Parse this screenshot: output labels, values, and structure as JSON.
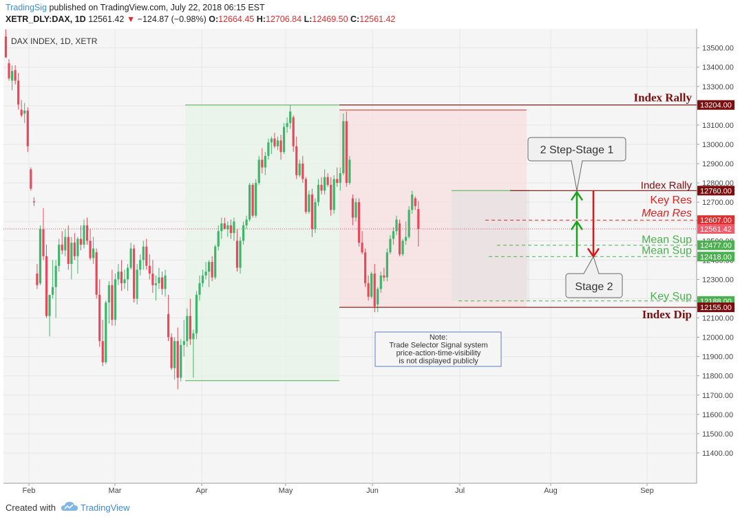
{
  "header": {
    "publisher": "TradingSig",
    "published_text": "published on TradingView.com, July 22, 2018 06:15 EST",
    "symbol": "XETR_DLY:DAX, 1D",
    "last": "12561.42",
    "change_arrow": "▼",
    "change": "−124.87 (−0.98%)",
    "open_label": "O:",
    "open": "12664.45",
    "high_label": "H:",
    "high": "12706.84",
    "low_label": "L:",
    "low": "12469.50",
    "close_label": "C:",
    "close": "12561.42"
  },
  "footer": {
    "created_with": "Created with",
    "brand": "TradingView"
  },
  "colors": {
    "up": "#3fb56a",
    "down": "#e8485a",
    "dark_red": "#7b0f0f",
    "green": "#4cb050",
    "red": "#dd2222"
  },
  "chart_data": {
    "type": "candlestick",
    "title": "DAX INDEX, 1D, XETR",
    "y_range": [
      11300,
      13570
    ],
    "y_ticks": [
      11400,
      11500,
      11600,
      11700,
      11800,
      11900,
      12000,
      12100,
      12200,
      12300,
      12400,
      12500,
      12600,
      12700,
      12800,
      12900,
      13000,
      13100,
      13200,
      13300,
      13400,
      13500
    ],
    "x_ticks": [
      "Feb",
      "Mar",
      "Apr",
      "May",
      "Jun",
      "Jul",
      "Aug",
      "Sep"
    ],
    "price_tags": [
      {
        "label": "13204.00",
        "value": 13204,
        "color": "#7b0f0f"
      },
      {
        "label": "12760.00",
        "value": 12760,
        "color": "#7b0f0f"
      },
      {
        "label": "12607.00",
        "value": 12607,
        "color": "#e02d2d"
      },
      {
        "label": "12561.42",
        "value": 12561.42,
        "color": "#ef5b6a"
      },
      {
        "label": "12477.00",
        "value": 12477,
        "color": "#4cb050"
      },
      {
        "label": "12418.00",
        "value": 12418,
        "color": "#4cb050"
      },
      {
        "label": "12188.00",
        "value": 12188,
        "color": "#4cb050"
      },
      {
        "label": "12155.00",
        "value": 12155,
        "color": "#7b0f0f"
      }
    ],
    "levels": [
      {
        "name": "Index Rally",
        "value": 13204
      },
      {
        "name": "Index Rally",
        "value": 12760
      },
      {
        "name": "Key Res",
        "value": 12700
      },
      {
        "name": "Mean Res",
        "value": 12607
      },
      {
        "name": "Mean Sup",
        "value": 12477
      },
      {
        "name": "Mean Sup",
        "value": 12418
      },
      {
        "name": "Key Sup",
        "value": 12188
      },
      {
        "name": "Index Dip",
        "value": 12155
      }
    ],
    "callouts": [
      "2 Step-Stage 1",
      "Stage 2"
    ],
    "note": [
      "Note:",
      "Trade Selector Signal system",
      "price-action-time-visibility",
      "is not displayed publicly"
    ],
    "candles": [
      {
        "o": 13559,
        "h": 13596,
        "l": 13450,
        "c": 13450
      },
      {
        "o": 13420,
        "h": 13442,
        "l": 13330,
        "c": 13342
      },
      {
        "o": 13330,
        "h": 13409,
        "l": 13280,
        "c": 13380
      },
      {
        "o": 13385,
        "h": 13410,
        "l": 13310,
        "c": 13330
      },
      {
        "o": 13330,
        "h": 13370,
        "l": 13180,
        "c": 13206
      },
      {
        "o": 13180,
        "h": 13230,
        "l": 13140,
        "c": 13150
      },
      {
        "o": 13160,
        "h": 13215,
        "l": 13110,
        "c": 13175
      },
      {
        "o": 13175,
        "h": 13192,
        "l": 12960,
        "c": 12990
      },
      {
        "o": 12870,
        "h": 12880,
        "l": 12760,
        "c": 12770
      },
      {
        "o": 12704,
        "h": 12726,
        "l": 12680,
        "c": 12700
      },
      {
        "o": 12330,
        "h": 12380,
        "l": 12250,
        "c": 12270
      },
      {
        "o": 12280,
        "h": 12580,
        "l": 12270,
        "c": 12560
      },
      {
        "o": 12560,
        "h": 12670,
        "l": 12400,
        "c": 12420
      },
      {
        "o": 12420,
        "h": 12480,
        "l": 12100,
        "c": 12110
      },
      {
        "o": 12110,
        "h": 12200,
        "l": 12005,
        "c": 12220
      },
      {
        "o": 12220,
        "h": 12400,
        "l": 12200,
        "c": 12260
      },
      {
        "o": 12260,
        "h": 12400,
        "l": 12100,
        "c": 12370
      },
      {
        "o": 12370,
        "h": 12510,
        "l": 12340,
        "c": 12480
      },
      {
        "o": 12480,
        "h": 12550,
        "l": 12430,
        "c": 12450
      },
      {
        "o": 12450,
        "h": 12560,
        "l": 12420,
        "c": 12520
      },
      {
        "o": 12520,
        "h": 12580,
        "l": 12350,
        "c": 12380
      },
      {
        "o": 12380,
        "h": 12520,
        "l": 12300,
        "c": 12490
      },
      {
        "o": 12490,
        "h": 12540,
        "l": 12400,
        "c": 12420
      },
      {
        "o": 12420,
        "h": 12520,
        "l": 12330,
        "c": 12510
      },
      {
        "o": 12510,
        "h": 12580,
        "l": 12450,
        "c": 12480
      },
      {
        "o": 12480,
        "h": 12610,
        "l": 12460,
        "c": 12580
      },
      {
        "o": 12580,
        "h": 12620,
        "l": 12480,
        "c": 12500
      },
      {
        "o": 12500,
        "h": 12560,
        "l": 12400,
        "c": 12410
      },
      {
        "o": 12410,
        "h": 12520,
        "l": 12380,
        "c": 12460
      },
      {
        "o": 12440,
        "h": 12460,
        "l": 12200,
        "c": 12220
      },
      {
        "o": 12220,
        "h": 12300,
        "l": 11950,
        "c": 11980
      },
      {
        "o": 11980,
        "h": 12090,
        "l": 11850,
        "c": 11870
      },
      {
        "o": 11870,
        "h": 12190,
        "l": 11860,
        "c": 12180
      },
      {
        "o": 12180,
        "h": 12290,
        "l": 12070,
        "c": 12270
      },
      {
        "o": 12270,
        "h": 12350,
        "l": 12060,
        "c": 12090
      },
      {
        "o": 12090,
        "h": 12330,
        "l": 12060,
        "c": 12300
      },
      {
        "o": 12300,
        "h": 12380,
        "l": 12270,
        "c": 12340
      },
      {
        "o": 12340,
        "h": 12400,
        "l": 12240,
        "c": 12280
      },
      {
        "o": 12280,
        "h": 12350,
        "l": 12250,
        "c": 12300
      },
      {
        "o": 12300,
        "h": 12380,
        "l": 12240,
        "c": 12360
      },
      {
        "o": 12360,
        "h": 12490,
        "l": 12350,
        "c": 12460
      },
      {
        "o": 12460,
        "h": 12480,
        "l": 12180,
        "c": 12200
      },
      {
        "o": 12200,
        "h": 12380,
        "l": 12170,
        "c": 12350
      },
      {
        "o": 12350,
        "h": 12430,
        "l": 12320,
        "c": 12400
      },
      {
        "o": 12400,
        "h": 12500,
        "l": 12350,
        "c": 12470
      },
      {
        "o": 12470,
        "h": 12510,
        "l": 12350,
        "c": 12370
      },
      {
        "o": 12370,
        "h": 12430,
        "l": 12300,
        "c": 12330
      },
      {
        "o": 12330,
        "h": 12400,
        "l": 12230,
        "c": 12270
      },
      {
        "o": 12270,
        "h": 12320,
        "l": 12190,
        "c": 12280
      },
      {
        "o": 12280,
        "h": 12360,
        "l": 12250,
        "c": 12310
      },
      {
        "o": 12310,
        "h": 12340,
        "l": 12220,
        "c": 12250
      },
      {
        "o": 12250,
        "h": 12350,
        "l": 12210,
        "c": 12320
      },
      {
        "o": 12120,
        "h": 12220,
        "l": 11980,
        "c": 12000
      },
      {
        "o": 12000,
        "h": 12020,
        "l": 11830,
        "c": 11840
      },
      {
        "o": 11840,
        "h": 12000,
        "l": 11780,
        "c": 11980
      },
      {
        "o": 11980,
        "h": 12050,
        "l": 11730,
        "c": 11790
      },
      {
        "o": 11790,
        "h": 11990,
        "l": 11770,
        "c": 11960
      },
      {
        "o": 11960,
        "h": 12090,
        "l": 11900,
        "c": 11980
      },
      {
        "o": 11980,
        "h": 12150,
        "l": 11950,
        "c": 12110
      },
      {
        "o": 12110,
        "h": 12200,
        "l": 11960,
        "c": 11990
      },
      {
        "o": 11990,
        "h": 12040,
        "l": 11790,
        "c": 12020
      },
      {
        "o": 12020,
        "h": 12240,
        "l": 11990,
        "c": 12220
      },
      {
        "o": 12220,
        "h": 12320,
        "l": 12190,
        "c": 12280
      },
      {
        "o": 12280,
        "h": 12350,
        "l": 12260,
        "c": 12320
      },
      {
        "o": 12320,
        "h": 12390,
        "l": 12300,
        "c": 12340
      },
      {
        "o": 12340,
        "h": 12400,
        "l": 12260,
        "c": 12390
      },
      {
        "o": 12390,
        "h": 12420,
        "l": 12290,
        "c": 12310
      },
      {
        "o": 12310,
        "h": 12480,
        "l": 12300,
        "c": 12470
      },
      {
        "o": 12470,
        "h": 12580,
        "l": 12450,
        "c": 12550
      },
      {
        "o": 12550,
        "h": 12620,
        "l": 12510,
        "c": 12590
      },
      {
        "o": 12590,
        "h": 12620,
        "l": 12560,
        "c": 12560
      },
      {
        "o": 12560,
        "h": 12600,
        "l": 12520,
        "c": 12580
      },
      {
        "o": 12580,
        "h": 12610,
        "l": 12510,
        "c": 12540
      },
      {
        "o": 12540,
        "h": 12620,
        "l": 12500,
        "c": 12600
      },
      {
        "o": 12500,
        "h": 12560,
        "l": 12340,
        "c": 12360
      },
      {
        "o": 12360,
        "h": 12520,
        "l": 12330,
        "c": 12500
      },
      {
        "o": 12500,
        "h": 12600,
        "l": 12480,
        "c": 12580
      },
      {
        "o": 12580,
        "h": 12630,
        "l": 12560,
        "c": 12610
      },
      {
        "o": 12610,
        "h": 12800,
        "l": 12600,
        "c": 12790
      },
      {
        "o": 12790,
        "h": 12800,
        "l": 12620,
        "c": 12630
      },
      {
        "o": 12630,
        "h": 12820,
        "l": 12620,
        "c": 12800
      },
      {
        "o": 12800,
        "h": 12940,
        "l": 12790,
        "c": 12920
      },
      {
        "o": 12920,
        "h": 12980,
        "l": 12850,
        "c": 12880
      },
      {
        "o": 12880,
        "h": 12960,
        "l": 12840,
        "c": 12940
      },
      {
        "o": 12940,
        "h": 13030,
        "l": 12920,
        "c": 13010
      },
      {
        "o": 13010,
        "h": 13040,
        "l": 12950,
        "c": 13030
      },
      {
        "o": 13030,
        "h": 13060,
        "l": 12980,
        "c": 12990
      },
      {
        "o": 12990,
        "h": 13040,
        "l": 12970,
        "c": 13020
      },
      {
        "o": 13020,
        "h": 13050,
        "l": 12920,
        "c": 12960
      },
      {
        "o": 12960,
        "h": 13110,
        "l": 12950,
        "c": 13090
      },
      {
        "o": 13090,
        "h": 13140,
        "l": 13060,
        "c": 13110
      },
      {
        "o": 13110,
        "h": 13204,
        "l": 13080,
        "c": 13170
      },
      {
        "o": 13140,
        "h": 13150,
        "l": 12960,
        "c": 12990
      },
      {
        "o": 12990,
        "h": 13040,
        "l": 12820,
        "c": 12840
      },
      {
        "o": 12840,
        "h": 12920,
        "l": 12830,
        "c": 12900
      },
      {
        "o": 12900,
        "h": 12940,
        "l": 12800,
        "c": 12820
      },
      {
        "o": 12820,
        "h": 12830,
        "l": 12640,
        "c": 12650
      },
      {
        "o": 12650,
        "h": 12760,
        "l": 12640,
        "c": 12740
      },
      {
        "o": 12740,
        "h": 12770,
        "l": 12520,
        "c": 12560
      },
      {
        "o": 12560,
        "h": 12720,
        "l": 12540,
        "c": 12700
      },
      {
        "o": 12700,
        "h": 12820,
        "l": 12680,
        "c": 12790
      },
      {
        "o": 12790,
        "h": 12830,
        "l": 12740,
        "c": 12760
      },
      {
        "o": 12760,
        "h": 12870,
        "l": 12740,
        "c": 12830
      },
      {
        "o": 12830,
        "h": 12850,
        "l": 12780,
        "c": 12790
      },
      {
        "o": 12790,
        "h": 12830,
        "l": 12630,
        "c": 12660
      },
      {
        "o": 12660,
        "h": 12840,
        "l": 12640,
        "c": 12820
      },
      {
        "o": 12820,
        "h": 12880,
        "l": 12780,
        "c": 12800
      },
      {
        "o": 12800,
        "h": 12880,
        "l": 12760,
        "c": 12850
      },
      {
        "o": 12850,
        "h": 13160,
        "l": 12840,
        "c": 13120
      },
      {
        "o": 13120,
        "h": 13170,
        "l": 12780,
        "c": 12800
      },
      {
        "o": 12800,
        "h": 12940,
        "l": 12790,
        "c": 12920
      },
      {
        "o": 12720,
        "h": 12740,
        "l": 12580,
        "c": 12620
      },
      {
        "o": 12620,
        "h": 12720,
        "l": 12600,
        "c": 12700
      },
      {
        "o": 12700,
        "h": 12720,
        "l": 12470,
        "c": 12490
      },
      {
        "o": 12490,
        "h": 12550,
        "l": 12430,
        "c": 12440
      },
      {
        "o": 12440,
        "h": 12460,
        "l": 12260,
        "c": 12280
      },
      {
        "o": 12280,
        "h": 12320,
        "l": 12190,
        "c": 12210
      },
      {
        "o": 12210,
        "h": 12340,
        "l": 12200,
        "c": 12330
      },
      {
        "o": 12330,
        "h": 12380,
        "l": 12130,
        "c": 12160
      },
      {
        "o": 12170,
        "h": 12260,
        "l": 12130,
        "c": 12250
      },
      {
        "o": 12250,
        "h": 12340,
        "l": 12230,
        "c": 12320
      },
      {
        "o": 12320,
        "h": 12360,
        "l": 12290,
        "c": 12310
      },
      {
        "o": 12310,
        "h": 12460,
        "l": 12290,
        "c": 12440
      },
      {
        "o": 12440,
        "h": 12530,
        "l": 12430,
        "c": 12510
      },
      {
        "o": 12510,
        "h": 12570,
        "l": 12480,
        "c": 12550
      },
      {
        "o": 12550,
        "h": 12630,
        "l": 12530,
        "c": 12610
      },
      {
        "o": 12590,
        "h": 12610,
        "l": 12420,
        "c": 12430
      },
      {
        "o": 12430,
        "h": 12510,
        "l": 12420,
        "c": 12500
      },
      {
        "o": 12500,
        "h": 12600,
        "l": 12480,
        "c": 12520
      },
      {
        "o": 12520,
        "h": 12680,
        "l": 12510,
        "c": 12660
      },
      {
        "o": 12660,
        "h": 12760,
        "l": 12640,
        "c": 12740
      },
      {
        "o": 12720,
        "h": 12730,
        "l": 12660,
        "c": 12680
      },
      {
        "o": 12664.45,
        "h": 12706.84,
        "l": 12469.5,
        "c": 12561.42
      }
    ]
  }
}
